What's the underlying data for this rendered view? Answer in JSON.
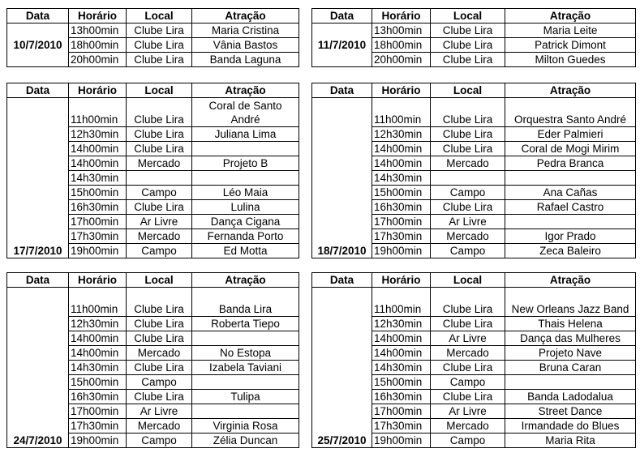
{
  "headers": {
    "date": "Data",
    "time": "Horário",
    "place": "Local",
    "attraction": "Atração"
  },
  "tables": [
    {
      "date": "10/7/2010",
      "rows": [
        {
          "time": "13h00min",
          "place": "Clube Lira",
          "attraction": "Maria Cristina"
        },
        {
          "time": "18h00min",
          "place": "Clube Lira",
          "attraction": "Vânia Bastos"
        },
        {
          "time": "20h00min",
          "place": "Clube Lira",
          "attraction": "Banda Laguna"
        }
      ]
    },
    {
      "date": "11/7/2010",
      "rows": [
        {
          "time": "13h00min",
          "place": "Clube Lira",
          "attraction": "Maria Leite"
        },
        {
          "time": "18h00min",
          "place": "Clube Lira",
          "attraction": "Patrick Dimont"
        },
        {
          "time": "20h00min",
          "place": "Clube Lira",
          "attraction": "Milton Guedes"
        }
      ]
    },
    {
      "date": "17/7/2010",
      "rows": [
        {
          "time": "11h00min",
          "place": "Clube Lira",
          "attraction": "Coral de Santo André"
        },
        {
          "time": "12h30min",
          "place": "Clube Lira",
          "attraction": "Juliana Lima"
        },
        {
          "time": "14h00min",
          "place": "Clube Lira",
          "attraction": ""
        },
        {
          "time": "14h00min",
          "place": "Mercado",
          "attraction": "Projeto B"
        },
        {
          "time": "14h30min",
          "place": "",
          "attraction": ""
        },
        {
          "time": "15h00min",
          "place": "Campo",
          "attraction": "Léo Maia"
        },
        {
          "time": "16h30min",
          "place": "Clube Lira",
          "attraction": "Lulina"
        },
        {
          "time": "17h00min",
          "place": "Ar Livre",
          "attraction": "Dança Cigana"
        },
        {
          "time": "17h30min",
          "place": "Mercado",
          "attraction": "Fernanda Porto"
        },
        {
          "time": "19h00min",
          "place": "Campo",
          "attraction": "Ed Motta"
        }
      ]
    },
    {
      "date": "18/7/2010",
      "rows": [
        {
          "time": "11h00min",
          "place": "Clube Lira",
          "attraction": "Orquestra Santo André"
        },
        {
          "time": "12h30min",
          "place": "Clube Lira",
          "attraction": "Eder Palmieri"
        },
        {
          "time": "14h00min",
          "place": "Clube Lira",
          "attraction": "Coral de Mogi Mirim"
        },
        {
          "time": "14h00min",
          "place": "Mercado",
          "attraction": "Pedra Branca"
        },
        {
          "time": "14h30min",
          "place": "",
          "attraction": ""
        },
        {
          "time": "15h00min",
          "place": "Campo",
          "attraction": "Ana Cañas"
        },
        {
          "time": "16h30min",
          "place": "Clube Lira",
          "attraction": "Rafael Castro"
        },
        {
          "time": "17h00min",
          "place": "Ar Livre",
          "attraction": ""
        },
        {
          "time": "17h30min",
          "place": "Mercado",
          "attraction": "Igor Prado"
        },
        {
          "time": "19h00min",
          "place": "Campo",
          "attraction": "Zeca Baleiro"
        }
      ]
    },
    {
      "date": "24/7/2010",
      "rows": [
        {
          "time": "11h00min",
          "place": "Clube Lira",
          "attraction": "Banda Lira"
        },
        {
          "time": "12h30min",
          "place": "Clube Lira",
          "attraction": "Roberta Tiepo"
        },
        {
          "time": "14h00min",
          "place": "Clube Lira",
          "attraction": ""
        },
        {
          "time": "14h00min",
          "place": "Mercado",
          "attraction": "No Estopa"
        },
        {
          "time": "14h30min",
          "place": "Clube Lira",
          "attraction": "Izabela Taviani"
        },
        {
          "time": "15h00min",
          "place": "Campo",
          "attraction": ""
        },
        {
          "time": "16h30min",
          "place": "Clube Lira",
          "attraction": "Tulipa"
        },
        {
          "time": "17h00min",
          "place": "Ar Livre",
          "attraction": ""
        },
        {
          "time": "17h30min",
          "place": "Mercado",
          "attraction": "Virginia Rosa"
        },
        {
          "time": "19h00min",
          "place": "Campo",
          "attraction": "Zélia Duncan"
        }
      ]
    },
    {
      "date": "25/7/2010",
      "rows": [
        {
          "time": "11h00min",
          "place": "Clube Lira",
          "attraction": "New Orleans Jazz Band"
        },
        {
          "time": "12h30min",
          "place": "Clube Lira",
          "attraction": "Thais Helena"
        },
        {
          "time": "14h00min",
          "place": "Ar Livre",
          "attraction": "Dança das Mulheres"
        },
        {
          "time": "14h00min",
          "place": "Mercado",
          "attraction": "Projeto Nave"
        },
        {
          "time": "14h30min",
          "place": "Clube Lira",
          "attraction": "Bruna Caran"
        },
        {
          "time": "15h00min",
          "place": "Campo",
          "attraction": ""
        },
        {
          "time": "16h30min",
          "place": "Clube Lira",
          "attraction": "Banda Ladodalua"
        },
        {
          "time": "17h00min",
          "place": "Ar Livre",
          "attraction": "Street Dance"
        },
        {
          "time": "17h30min",
          "place": "Mercado",
          "attraction": "Irmandade do Blues"
        },
        {
          "time": "19h00min",
          "place": "Campo",
          "attraction": "Maria Rita"
        }
      ]
    }
  ]
}
